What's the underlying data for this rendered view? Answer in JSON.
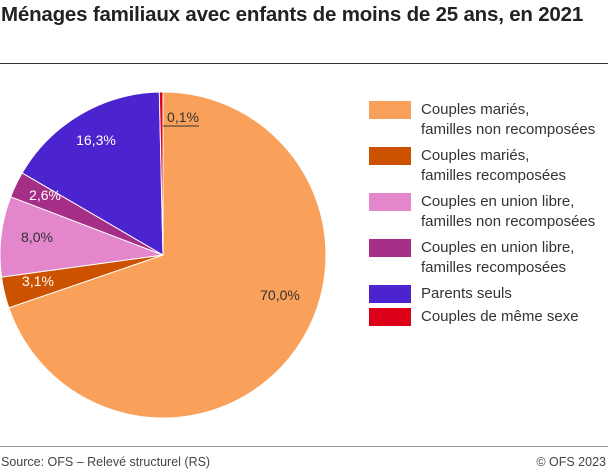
{
  "title": "Ménages familiaux avec enfants de moins de 25 ans, en 2021",
  "source": "Source: OFS – Relevé structurel (RS)",
  "copyright": "© OFS 2023",
  "chart_data": {
    "type": "pie",
    "title": "Ménages familiaux avec enfants de moins de 25 ans, en 2021",
    "start": "top",
    "direction": "clockwise",
    "slices": [
      {
        "name": "Couples mariés, familles non recomposées",
        "legend": [
          "Couples mariés,",
          "familles non recomposées"
        ],
        "value": 70.0,
        "label": "70,0%",
        "color": "#f9a05a"
      },
      {
        "name": "Couples mariés, familles recomposées",
        "legend": [
          "Couples mariés,",
          "familles recomposées"
        ],
        "value": 3.1,
        "label": "3,1%",
        "color": "#cc5200"
      },
      {
        "name": "Couples en union libre, familles non recomposées",
        "legend": [
          "Couples en union libre,",
          "familles non recomposées"
        ],
        "value": 8.0,
        "label": "8,0%",
        "color": "#e386cc"
      },
      {
        "name": "Couples en union libre, familles recomposées",
        "legend": [
          "Couples en union libre,",
          "familles recomposées"
        ],
        "value": 2.6,
        "label": "2,6%",
        "color": "#a52e86"
      },
      {
        "name": "Parents seuls",
        "legend": [
          "Parents seuls"
        ],
        "value": 16.3,
        "label": "16,3%",
        "color": "#4b24cf"
      },
      {
        "name": "Couples de même sexe",
        "legend": [
          "Couples de même sexe"
        ],
        "value": 0.1,
        "label": "0,1%",
        "color": "#dc0018"
      }
    ],
    "legend_position": "right"
  }
}
